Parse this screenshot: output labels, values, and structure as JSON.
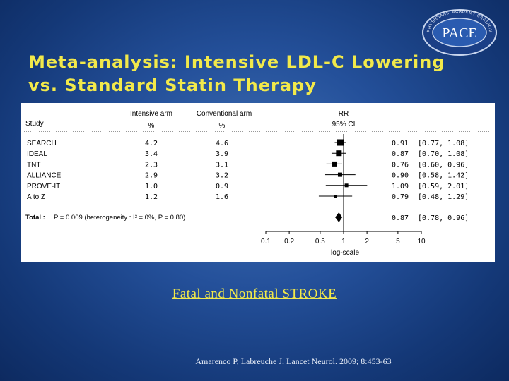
{
  "slide": {
    "title_line1": "Meta-analysis: Intensive LDL-C Lowering",
    "title_line2": "vs. Standard Statin Therapy",
    "caption": "Fatal and Nonfatal STROKE",
    "citation": "Amarenco P, Labreuche J. Lancet Neurol. 2009; 8:453-63"
  },
  "logo": {
    "text": "PACE",
    "ring_text": "PHYSICIANS' ACADEMY CARDIOVASCULAR EDUCATION"
  },
  "colors": {
    "title": "#f2e94a",
    "caption": "#f2e94a",
    "background": "#1d4a92",
    "panel": "#ffffff",
    "marker": "#000000"
  },
  "chart_data": {
    "type": "forest",
    "headers": {
      "study": "Study",
      "intensive": "Intensive arm",
      "intensive_unit": "%",
      "conventional": "Conventional arm",
      "conventional_unit": "%",
      "rr": "RR",
      "ci": "95% CI"
    },
    "rows": [
      {
        "study": "SEARCH",
        "intensive": "4.2",
        "conventional": "4.6",
        "rr": 0.91,
        "lo": 0.77,
        "hi": 1.08,
        "rr_text": "0.91",
        "ci_text": "[0.77,  1.08]"
      },
      {
        "study": "IDEAL",
        "intensive": "3.4",
        "conventional": "3.9",
        "rr": 0.87,
        "lo": 0.7,
        "hi": 1.08,
        "rr_text": "0.87",
        "ci_text": "[0.70,  1.08]"
      },
      {
        "study": "TNT",
        "intensive": "2.3",
        "conventional": "3.1",
        "rr": 0.76,
        "lo": 0.6,
        "hi": 0.96,
        "rr_text": "0.76",
        "ci_text": "[0.60,  0.96]"
      },
      {
        "study": "ALLIANCE",
        "intensive": "2.9",
        "conventional": "3.2",
        "rr": 0.9,
        "lo": 0.58,
        "hi": 1.42,
        "rr_text": "0.90",
        "ci_text": "[0.58,  1.42]"
      },
      {
        "study": "PROVE-IT",
        "intensive": "1.0",
        "conventional": "0.9",
        "rr": 1.09,
        "lo": 0.59,
        "hi": 2.01,
        "rr_text": "1.09",
        "ci_text": "[0.59,  2.01]"
      },
      {
        "study": "A to Z",
        "intensive": "1.2",
        "conventional": "1.6",
        "rr": 0.79,
        "lo": 0.48,
        "hi": 1.29,
        "rr_text": "0.79",
        "ci_text": "[0.48,  1.29]"
      }
    ],
    "total": {
      "label": "Total :",
      "stats": "P = 0.009 (heterogeneity : I² = 0%, P = 0.80)",
      "rr": 0.87,
      "lo": 0.78,
      "hi": 0.96,
      "rr_text": "0.87",
      "ci_text": "[0.78,  0.96]"
    },
    "x_ticks": [
      0.1,
      0.2,
      0.5,
      1,
      2,
      5,
      10
    ],
    "x_tick_labels": [
      "0.1",
      "0.2",
      "0.5",
      "1",
      "2",
      "5",
      "10"
    ],
    "x_scale": "log",
    "xlabel": "log-scale",
    "xlim": [
      0.1,
      10
    ]
  }
}
